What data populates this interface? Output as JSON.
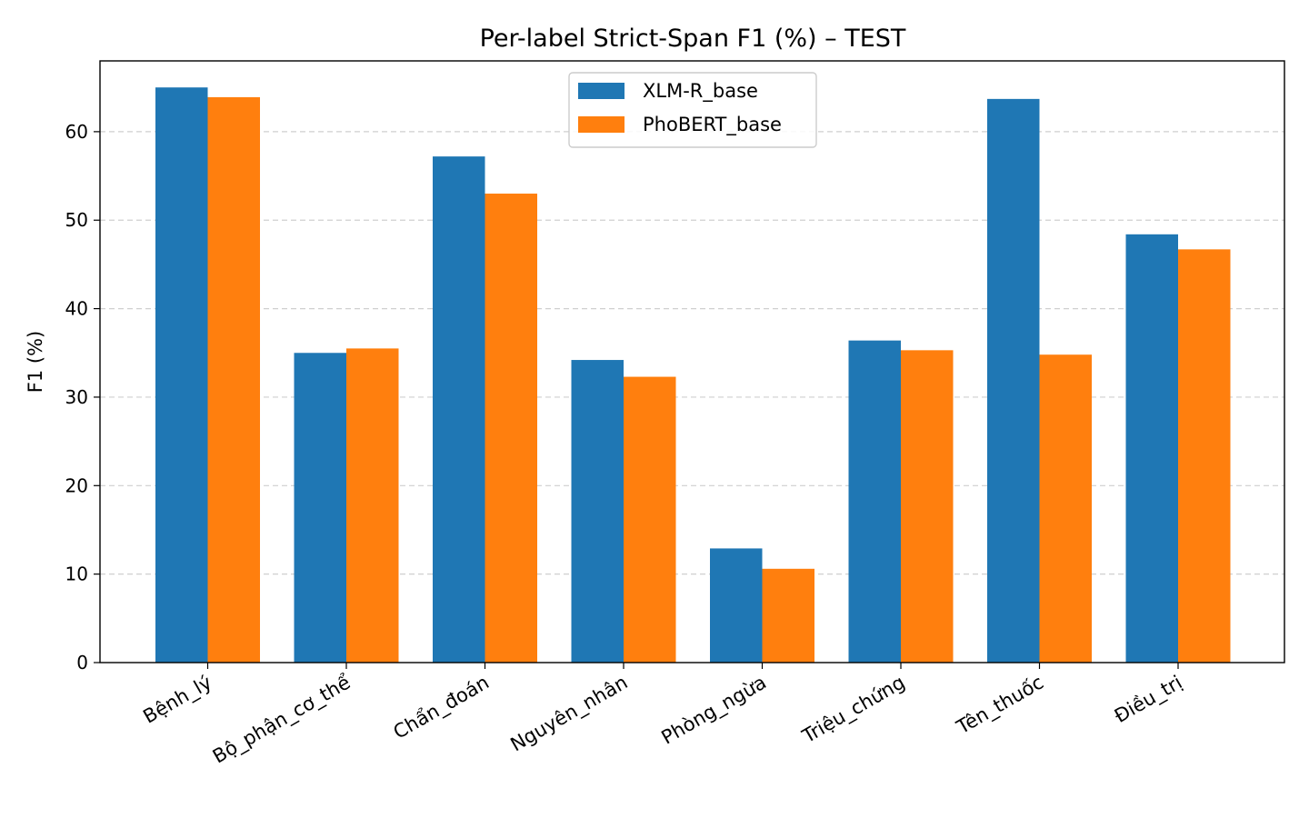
{
  "chart_data": {
    "type": "bar",
    "title": "Per-label Strict-Span F1 (%) – TEST",
    "xlabel": "",
    "ylabel": "F1 (%)",
    "ylim": [
      0,
      68
    ],
    "yticks": [
      0,
      10,
      20,
      30,
      40,
      50,
      60
    ],
    "grid": "y-dashed",
    "legend_position": "top-center",
    "categories": [
      "Bệnh_lý",
      "Bộ_phận_cơ_thể",
      "Chẩn_đoán",
      "Nguyên_nhân",
      "Phòng_ngừa",
      "Triệu_chứng",
      "Tên_thuốc",
      "Điều_trị"
    ],
    "series": [
      {
        "name": "XLM-R_base",
        "color": "#1f77b4",
        "values": [
          65.0,
          35.0,
          57.2,
          34.2,
          12.9,
          36.4,
          63.7,
          48.4
        ]
      },
      {
        "name": "PhoBERT_base",
        "color": "#ff7f0e",
        "values": [
          63.9,
          35.5,
          53.0,
          32.3,
          10.6,
          35.3,
          34.8,
          46.7
        ]
      }
    ]
  }
}
